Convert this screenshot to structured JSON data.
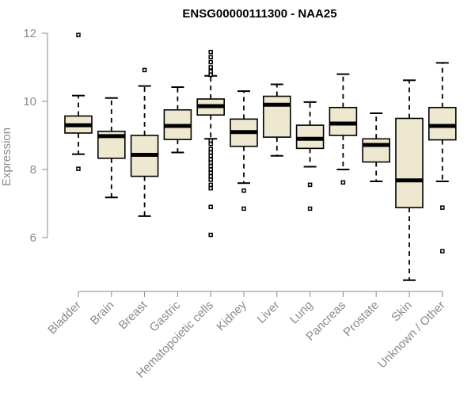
{
  "chart_data": {
    "type": "boxplot",
    "title": "ENSG00000111300 - NAA25",
    "ylabel": "Expression",
    "xlabel": "",
    "ylim": [
      4.5,
      12.3
    ],
    "yticks": [
      6,
      8,
      10,
      12
    ],
    "categories": [
      "Bladder",
      "Brain",
      "Breast",
      "Gastric",
      "Hematopoietic cells",
      "Kidney",
      "Liver",
      "Lung",
      "Pancreas",
      "Prostate",
      "Skin",
      "Unknown / Other"
    ],
    "boxes": [
      {
        "category": "Bladder",
        "whisker_low": 8.45,
        "q1": 9.07,
        "median": 9.3,
        "q3": 9.57,
        "whisker_high": 10.17,
        "outliers": [
          11.95,
          8.02
        ]
      },
      {
        "category": "Brain",
        "whisker_low": 7.18,
        "q1": 8.33,
        "median": 8.98,
        "q3": 9.12,
        "whisker_high": 10.1,
        "outliers": []
      },
      {
        "category": "Breast",
        "whisker_low": 6.63,
        "q1": 7.8,
        "median": 8.43,
        "q3": 9.0,
        "whisker_high": 10.45,
        "outliers": [
          10.92
        ]
      },
      {
        "category": "Gastric",
        "whisker_low": 8.5,
        "q1": 8.88,
        "median": 9.28,
        "q3": 9.75,
        "whisker_high": 10.42,
        "outliers": []
      },
      {
        "category": "Hematopoietic cells",
        "whisker_low": 8.9,
        "q1": 9.6,
        "median": 9.86,
        "q3": 10.07,
        "whisker_high": 10.75,
        "outliers": [
          11.45,
          11.3,
          11.15,
          11.0,
          10.88,
          10.78,
          8.85,
          8.75,
          8.6,
          8.5,
          8.4,
          8.3,
          8.2,
          8.1,
          8.0,
          7.9,
          7.8,
          7.7,
          7.55,
          7.45,
          6.9,
          6.08
        ]
      },
      {
        "category": "Kidney",
        "whisker_low": 7.6,
        "q1": 8.68,
        "median": 9.1,
        "q3": 9.48,
        "whisker_high": 10.3,
        "outliers": [
          7.38,
          6.85
        ]
      },
      {
        "category": "Liver",
        "whisker_low": 8.4,
        "q1": 8.95,
        "median": 9.9,
        "q3": 10.15,
        "whisker_high": 10.5,
        "outliers": []
      },
      {
        "category": "Lung",
        "whisker_low": 8.08,
        "q1": 8.62,
        "median": 8.9,
        "q3": 9.3,
        "whisker_high": 9.98,
        "outliers": [
          7.55,
          6.85
        ]
      },
      {
        "category": "Pancreas",
        "whisker_low": 8.0,
        "q1": 9.0,
        "median": 9.35,
        "q3": 9.82,
        "whisker_high": 10.8,
        "outliers": [
          7.62
        ]
      },
      {
        "category": "Prostate",
        "whisker_low": 7.65,
        "q1": 8.22,
        "median": 8.72,
        "q3": 8.9,
        "whisker_high": 9.65,
        "outliers": []
      },
      {
        "category": "Skin",
        "whisker_low": 4.75,
        "q1": 6.88,
        "median": 7.68,
        "q3": 9.5,
        "whisker_high": 10.62,
        "outliers": []
      },
      {
        "category": "Unknown / Other",
        "whisker_low": 7.65,
        "q1": 8.87,
        "median": 9.28,
        "q3": 9.82,
        "whisker_high": 11.13,
        "outliers": [
          6.88,
          5.6
        ]
      }
    ],
    "grid": false,
    "legend": "none"
  }
}
